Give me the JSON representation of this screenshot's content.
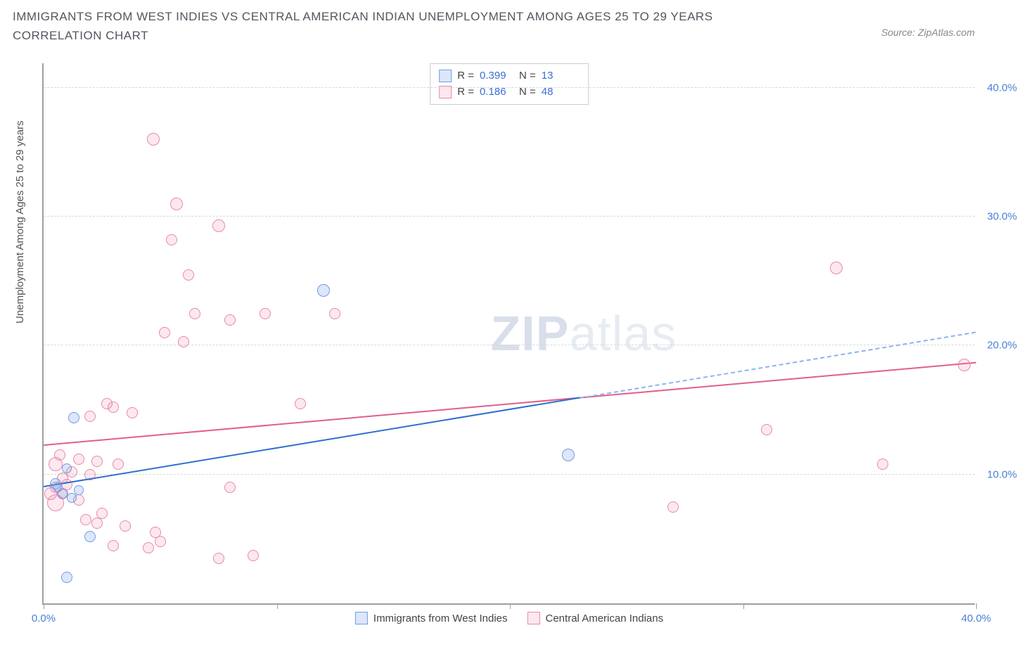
{
  "title": "IMMIGRANTS FROM WEST INDIES VS CENTRAL AMERICAN INDIAN UNEMPLOYMENT AMONG AGES 25 TO 29 YEARS CORRELATION CHART",
  "source": "Source: ZipAtlas.com",
  "watermark": {
    "part1": "ZIP",
    "part2": "atlas"
  },
  "y_axis_title": "Unemployment Among Ages 25 to 29 years",
  "chart": {
    "type": "scatter",
    "xlim": [
      0,
      40
    ],
    "ylim": [
      0,
      42
    ],
    "y_gridlines": [
      10,
      20,
      30,
      40
    ],
    "y_tick_labels": [
      "10.0%",
      "20.0%",
      "30.0%",
      "40.0%"
    ],
    "x_ticks": [
      0,
      10,
      20,
      30,
      40
    ],
    "x_tick_labels": [
      "0.0%",
      "",
      "",
      "",
      "40.0%"
    ],
    "background_color": "#ffffff",
    "grid_color": "#d5d9dc",
    "axis_color": "#9aa0a6",
    "series": [
      {
        "name": "Immigrants from West Indies",
        "fill": "rgba(120,160,230,0.25)",
        "stroke": "#6f9be8",
        "trend_color": "#2f6fd0",
        "trend_dash_color": "#8fb3ea",
        "R": "0.399",
        "N": "13",
        "trend": {
          "x1": 0,
          "y1": 9.0,
          "x2": 40,
          "y2": 21.0,
          "solid_until_x": 23
        },
        "points": [
          {
            "x": 0.5,
            "y": 9.3,
            "r": 8
          },
          {
            "x": 0.6,
            "y": 9.0,
            "r": 7
          },
          {
            "x": 0.8,
            "y": 8.5,
            "r": 7
          },
          {
            "x": 1.0,
            "y": 10.5,
            "r": 7
          },
          {
            "x": 1.2,
            "y": 8.2,
            "r": 7
          },
          {
            "x": 1.3,
            "y": 14.4,
            "r": 8
          },
          {
            "x": 1.5,
            "y": 8.8,
            "r": 7
          },
          {
            "x": 2.0,
            "y": 5.2,
            "r": 8
          },
          {
            "x": 1.0,
            "y": 2.0,
            "r": 8
          },
          {
            "x": 12.0,
            "y": 24.3,
            "r": 9
          },
          {
            "x": 22.5,
            "y": 11.5,
            "r": 9
          }
        ]
      },
      {
        "name": "Central American Indians",
        "fill": "rgba(240,140,170,0.20)",
        "stroke": "#e68aa8",
        "trend_color": "#e05f8a",
        "R": "0.186",
        "N": "48",
        "trend": {
          "x1": 0,
          "y1": 12.2,
          "x2": 40,
          "y2": 18.6,
          "solid_until_x": 40
        },
        "points": [
          {
            "x": 0.3,
            "y": 8.5,
            "r": 9
          },
          {
            "x": 0.5,
            "y": 9.0,
            "r": 8
          },
          {
            "x": 0.5,
            "y": 10.8,
            "r": 10
          },
          {
            "x": 0.5,
            "y": 7.8,
            "r": 12
          },
          {
            "x": 0.7,
            "y": 11.5,
            "r": 8
          },
          {
            "x": 0.8,
            "y": 8.5,
            "r": 8
          },
          {
            "x": 0.8,
            "y": 9.7,
            "r": 8
          },
          {
            "x": 1.0,
            "y": 9.2,
            "r": 8
          },
          {
            "x": 1.2,
            "y": 10.2,
            "r": 8
          },
          {
            "x": 1.5,
            "y": 8.0,
            "r": 8
          },
          {
            "x": 1.5,
            "y": 11.2,
            "r": 8
          },
          {
            "x": 1.8,
            "y": 6.5,
            "r": 8
          },
          {
            "x": 2.0,
            "y": 10.0,
            "r": 8
          },
          {
            "x": 2.0,
            "y": 14.5,
            "r": 8
          },
          {
            "x": 2.3,
            "y": 6.2,
            "r": 8
          },
          {
            "x": 2.3,
            "y": 11.0,
            "r": 8
          },
          {
            "x": 2.5,
            "y": 7.0,
            "r": 8
          },
          {
            "x": 2.7,
            "y": 15.5,
            "r": 8
          },
          {
            "x": 3.0,
            "y": 4.5,
            "r": 8
          },
          {
            "x": 3.0,
            "y": 15.2,
            "r": 8
          },
          {
            "x": 3.2,
            "y": 10.8,
            "r": 8
          },
          {
            "x": 3.5,
            "y": 6.0,
            "r": 8
          },
          {
            "x": 3.8,
            "y": 14.8,
            "r": 8
          },
          {
            "x": 4.5,
            "y": 4.3,
            "r": 8
          },
          {
            "x": 4.7,
            "y": 36.0,
            "r": 9
          },
          {
            "x": 4.8,
            "y": 5.5,
            "r": 8
          },
          {
            "x": 5.0,
            "y": 4.8,
            "r": 8
          },
          {
            "x": 5.2,
            "y": 21.0,
            "r": 8
          },
          {
            "x": 5.5,
            "y": 28.2,
            "r": 8
          },
          {
            "x": 5.7,
            "y": 31.0,
            "r": 9
          },
          {
            "x": 6.0,
            "y": 20.3,
            "r": 8
          },
          {
            "x": 6.2,
            "y": 25.5,
            "r": 8
          },
          {
            "x": 6.5,
            "y": 22.5,
            "r": 8
          },
          {
            "x": 7.5,
            "y": 3.5,
            "r": 8
          },
          {
            "x": 7.5,
            "y": 29.3,
            "r": 9
          },
          {
            "x": 8.0,
            "y": 9.0,
            "r": 8
          },
          {
            "x": 8.0,
            "y": 22.0,
            "r": 8
          },
          {
            "x": 9.0,
            "y": 3.7,
            "r": 8
          },
          {
            "x": 9.5,
            "y": 22.5,
            "r": 8
          },
          {
            "x": 11.0,
            "y": 15.5,
            "r": 8
          },
          {
            "x": 12.5,
            "y": 22.5,
            "r": 8
          },
          {
            "x": 27.0,
            "y": 7.5,
            "r": 8
          },
          {
            "x": 31.0,
            "y": 13.5,
            "r": 8
          },
          {
            "x": 34.0,
            "y": 26.0,
            "r": 9
          },
          {
            "x": 36.0,
            "y": 10.8,
            "r": 8
          },
          {
            "x": 39.5,
            "y": 18.5,
            "r": 9
          }
        ]
      }
    ]
  },
  "bottom_legend": [
    "Immigrants from West Indies",
    "Central American Indians"
  ]
}
